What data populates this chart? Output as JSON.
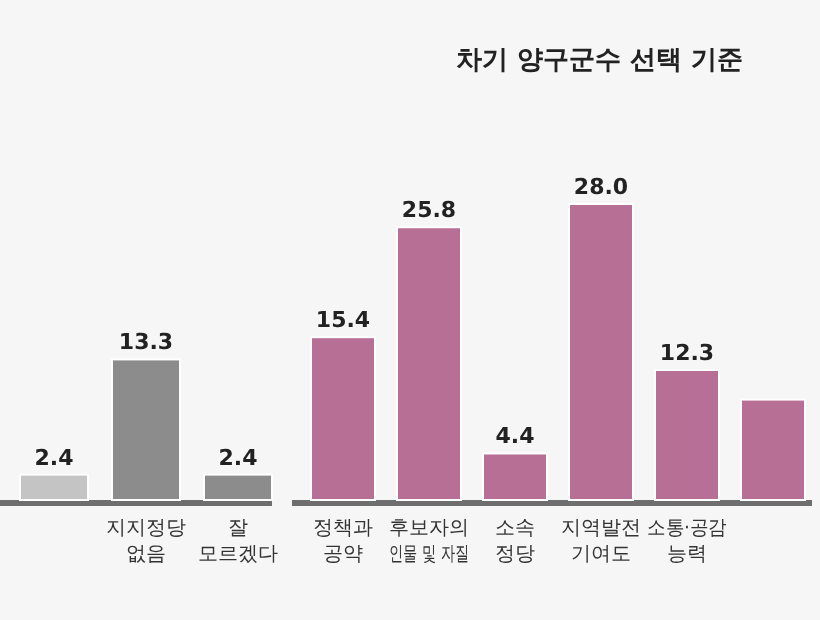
{
  "chart_data": [
    {
      "type": "bar",
      "categories": [
        null,
        "지지정당 없음",
        "잘 모르겠다"
      ],
      "values": [
        2.4,
        13.3,
        2.4
      ],
      "colors": [
        "#c4c4c4",
        "#8c8c8c",
        "#8c8c8c"
      ],
      "data_labels": true
    },
    {
      "type": "bar",
      "title": "차기 양구군수 선택 기준",
      "categories": [
        "정책과 공약",
        "후보자의 인물 및 자질",
        "소속 정당",
        "지역발전 기여도",
        "소통·공감 능력",
        null
      ],
      "values": [
        15.4,
        25.8,
        4.4,
        28.0,
        12.3,
        9.5
      ],
      "color": "#b86f96",
      "value_labels": [
        "15.4",
        "25.8",
        "4.4",
        "28.0",
        "12.3",
        null
      ]
    }
  ]
}
